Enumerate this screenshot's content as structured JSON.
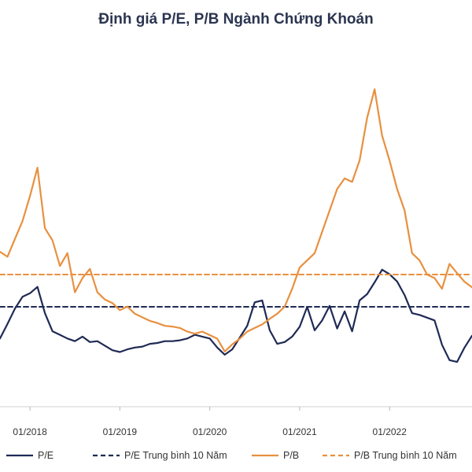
{
  "chart_data": {
    "type": "line",
    "title": "Định giá P/E, P/B Ngành Chứng Khoán",
    "xlabel": "",
    "ylabel": "",
    "x_ticks": [
      "01/2018",
      "01/2019",
      "01/2020",
      "01/2021",
      "01/2022"
    ],
    "xlim": [
      "2017-09",
      "2022-12"
    ],
    "y_axis_labels_shown": false,
    "grid": false,
    "legend_position": "bottom",
    "series": [
      {
        "name": "P/E",
        "style": "solid",
        "color": "#1f2a55",
        "x": [
          "2017-09",
          "2017-10",
          "2017-11",
          "2017-12",
          "2018-01",
          "2018-02",
          "2018-03",
          "2018-04",
          "2018-05",
          "2018-06",
          "2018-07",
          "2018-08",
          "2018-09",
          "2018-10",
          "2018-11",
          "2018-12",
          "2019-01",
          "2019-02",
          "2019-03",
          "2019-04",
          "2019-05",
          "2019-06",
          "2019-07",
          "2019-08",
          "2019-09",
          "2019-10",
          "2019-11",
          "2019-12",
          "2020-01",
          "2020-02",
          "2020-03",
          "2020-04",
          "2020-05",
          "2020-06",
          "2020-07",
          "2020-08",
          "2020-09",
          "2020-10",
          "2020-11",
          "2020-12",
          "2021-01",
          "2021-02",
          "2021-03",
          "2021-04",
          "2021-05",
          "2021-06",
          "2021-07",
          "2021-08",
          "2021-09",
          "2021-10",
          "2021-11",
          "2021-12",
          "2022-01",
          "2022-02",
          "2022-03",
          "2022-04",
          "2022-05",
          "2022-06",
          "2022-07",
          "2022-08",
          "2022-09",
          "2022-10",
          "2022-11",
          "2022-12"
        ],
        "values": [
          12.2,
          13.8,
          15.5,
          16.8,
          17.2,
          17.9,
          15.0,
          13.0,
          12.6,
          12.2,
          11.9,
          12.4,
          11.8,
          11.9,
          11.4,
          10.9,
          10.7,
          11.0,
          11.2,
          11.3,
          11.6,
          11.7,
          11.9,
          11.9,
          12.0,
          12.2,
          12.6,
          12.4,
          12.2,
          11.2,
          10.4,
          11.0,
          12.3,
          13.6,
          16.2,
          16.4,
          13.1,
          11.6,
          11.8,
          12.4,
          13.5,
          15.7,
          13.1,
          14.2,
          15.8,
          13.3,
          15.2,
          13.0,
          16.4,
          17.1,
          18.4,
          19.8,
          19.3,
          18.5,
          17.0,
          15.0,
          14.8,
          14.5,
          14.2,
          11.5,
          9.8,
          9.6,
          11.2,
          12.5
        ]
      },
      {
        "name": "P/E Trung bình 10 Năm",
        "style": "dashed",
        "color": "#1f2a55",
        "x": [
          "2017-09",
          "2022-12"
        ],
        "values": [
          15.7,
          15.7
        ]
      },
      {
        "name": "P/B",
        "style": "solid",
        "color": "#e8903f",
        "x": [
          "2017-09",
          "2017-10",
          "2017-11",
          "2017-12",
          "2018-01",
          "2018-02",
          "2018-03",
          "2018-04",
          "2018-05",
          "2018-06",
          "2018-07",
          "2018-08",
          "2018-09",
          "2018-10",
          "2018-11",
          "2018-12",
          "2019-01",
          "2019-02",
          "2019-03",
          "2019-04",
          "2019-05",
          "2019-06",
          "2019-07",
          "2019-08",
          "2019-09",
          "2019-10",
          "2019-11",
          "2019-12",
          "2020-01",
          "2020-02",
          "2020-03",
          "2020-04",
          "2020-05",
          "2020-06",
          "2020-07",
          "2020-08",
          "2020-09",
          "2020-10",
          "2020-11",
          "2020-12",
          "2021-01",
          "2021-02",
          "2021-03",
          "2021-04",
          "2021-05",
          "2021-06",
          "2021-07",
          "2021-08",
          "2021-09",
          "2021-10",
          "2021-11",
          "2021-12",
          "2022-01",
          "2022-02",
          "2022-03",
          "2022-04",
          "2022-05",
          "2022-06",
          "2022-07",
          "2022-08",
          "2022-09",
          "2022-10",
          "2022-11",
          "2022-12"
        ],
        "values": [
          2.12,
          2.05,
          2.3,
          2.55,
          2.9,
          3.3,
          2.45,
          2.28,
          1.92,
          2.1,
          1.55,
          1.75,
          1.88,
          1.55,
          1.45,
          1.4,
          1.3,
          1.35,
          1.25,
          1.2,
          1.15,
          1.12,
          1.08,
          1.07,
          1.05,
          1.0,
          0.97,
          1.0,
          0.95,
          0.9,
          0.72,
          0.82,
          0.9,
          1.0,
          1.05,
          1.1,
          1.18,
          1.25,
          1.35,
          1.6,
          1.9,
          2.0,
          2.1,
          2.4,
          2.7,
          3.0,
          3.15,
          3.1,
          3.4,
          4.0,
          4.4,
          3.75,
          3.4,
          3.0,
          2.7,
          2.1,
          2.0,
          1.8,
          1.75,
          1.6,
          1.95,
          1.82,
          1.7,
          1.62
        ]
      },
      {
        "name": "P/B Trung bình 10 Năm",
        "style": "dashed",
        "color": "#e8903f",
        "x": [
          "2017-09",
          "2022-12"
        ],
        "values": [
          1.8,
          1.8
        ]
      }
    ]
  }
}
